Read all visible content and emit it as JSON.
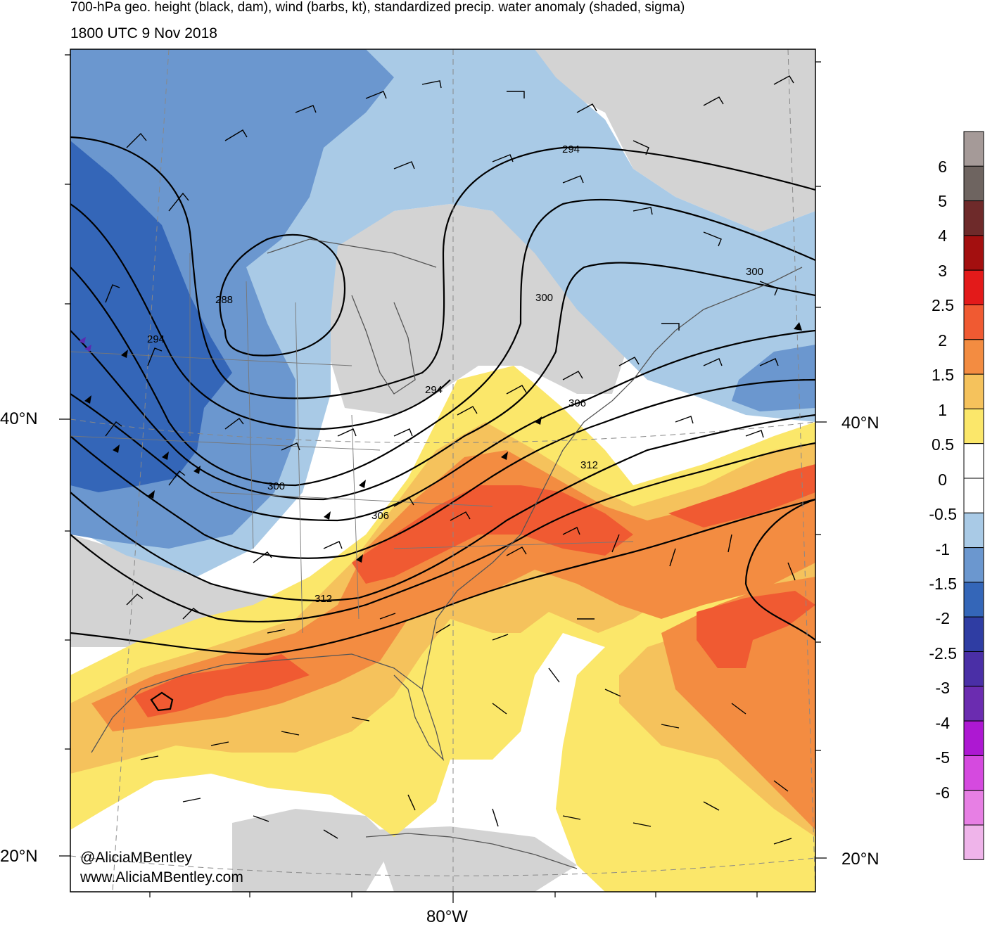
{
  "title_line1": "700-hPa geo. height (black, dam), wind (barbs, kt), standardized precip. water anomaly (shaded, sigma)",
  "title_line2": "1800 UTC 9 Nov 2018",
  "lat_labels": {
    "north40_left": "40°N",
    "north40_right": "40°N",
    "north20_left": "20°N",
    "north20_right": "20°N"
  },
  "lon_labels": {
    "west80": "80°W"
  },
  "credit": {
    "handle": "@AliciaMBentley",
    "website": "www.AliciaMBentley.com"
  },
  "contour_labels": [
    "288",
    "294",
    "294",
    "294",
    "300",
    "300",
    "300",
    "306",
    "306",
    "312",
    "312"
  ],
  "colorbar": {
    "labels": [
      "6",
      "5",
      "4",
      "3",
      "2.5",
      "2",
      "1.5",
      "1",
      "0.5",
      "0",
      "-0.5",
      "-1",
      "-1.5",
      "-2",
      "-2.5",
      "-3",
      "-4",
      "-5",
      "-6"
    ],
    "colors": [
      "#a59a98",
      "#6e6460",
      "#6e2a2a",
      "#a30f0f",
      "#e31a1a",
      "#f05a32",
      "#f38c41",
      "#f5c25c",
      "#fbe76a",
      "#ffffff",
      "#ffffff",
      "#a9cae6",
      "#6b97cf",
      "#3466b8",
      "#2f3da3",
      "#4a2fa6",
      "#6b2cb0",
      "#ad18d2",
      "#d54adf",
      "#e77fe4",
      "#efb4ea"
    ]
  }
}
